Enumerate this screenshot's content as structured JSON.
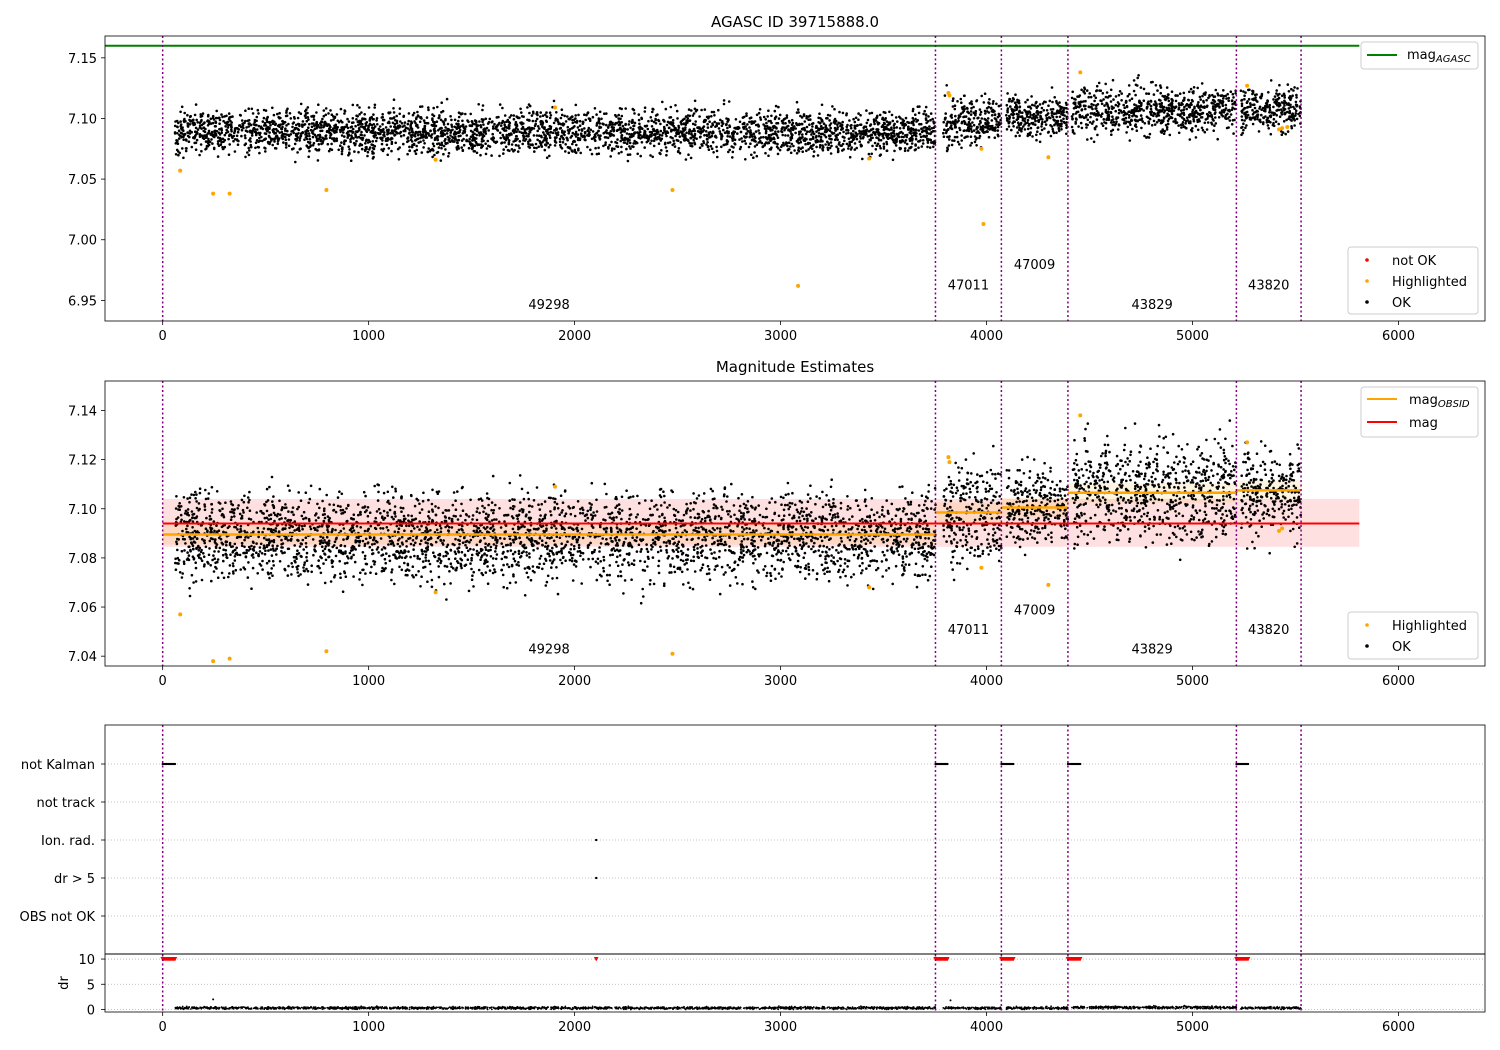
{
  "chart_data": [
    {
      "type": "scatter",
      "title": "AGASC ID 39715888.0",
      "xlim": [
        -280,
        6420
      ],
      "ylim": [
        6.933,
        7.168
      ],
      "xticks": [
        0,
        1000,
        2000,
        3000,
        4000,
        5000,
        6000
      ],
      "yticks": [
        6.95,
        7.0,
        7.05,
        7.1,
        7.15
      ],
      "ytick_labels": [
        "6.95",
        "7.00",
        "7.05",
        "7.10",
        "7.15"
      ],
      "xticklabels": [
        "0",
        "1000",
        "2000",
        "3000",
        "4000",
        "5000",
        "6000"
      ],
      "mag_agasc": 7.16,
      "obsid_boundaries": [
        0,
        3752,
        4072,
        4395,
        5213,
        5527
      ],
      "obsid_labels": [
        {
          "text": "49298",
          "x": 1876,
          "y": 6.943
        },
        {
          "text": "47011",
          "x": 3912,
          "y": 6.959
        },
        {
          "text": "47009",
          "x": 4233,
          "y": 6.976
        },
        {
          "text": "43829",
          "x": 4804,
          "y": 6.943
        },
        {
          "text": "43820",
          "x": 5370,
          "y": 6.959
        }
      ],
      "segments": [
        {
          "start": 60,
          "end": 3752,
          "mean": 7.089,
          "spread": 0.009
        },
        {
          "start": 3790,
          "end": 4072,
          "mean": 7.098,
          "spread": 0.01
        },
        {
          "start": 4095,
          "end": 4395,
          "mean": 7.101,
          "spread": 0.008
        },
        {
          "start": 4415,
          "end": 5213,
          "mean": 7.107,
          "spread": 0.01
        },
        {
          "start": 5235,
          "end": 5527,
          "mean": 7.107,
          "spread": 0.009
        }
      ],
      "highlighted_points": [
        [
          85,
          7.057
        ],
        [
          245,
          7.038
        ],
        [
          325,
          7.038
        ],
        [
          795,
          7.041
        ],
        [
          1325,
          7.066
        ],
        [
          1905,
          7.109
        ],
        [
          2475,
          7.041
        ],
        [
          3085,
          6.962
        ],
        [
          3430,
          7.067
        ],
        [
          3815,
          7.121
        ],
        [
          3820,
          7.119
        ],
        [
          3975,
          7.075
        ],
        [
          3985,
          7.013
        ],
        [
          4300,
          7.068
        ],
        [
          4455,
          7.138
        ],
        [
          5265,
          7.127
        ],
        [
          5420,
          7.091
        ],
        [
          5435,
          7.092
        ],
        [
          5460,
          7.093
        ]
      ],
      "legend_top": [
        {
          "label": "mag",
          "sub": "AGASC",
          "color": "#008000"
        }
      ],
      "legend_bottom": [
        {
          "label": "not OK",
          "color": "#ff0000"
        },
        {
          "label": "Highlighted",
          "color": "#ffa500"
        },
        {
          "label": "OK",
          "color": "#000000"
        }
      ]
    },
    {
      "type": "scatter",
      "title": "Magnitude Estimates",
      "xlim": [
        -280,
        6420
      ],
      "ylim": [
        7.036,
        7.152
      ],
      "xticks": [
        0,
        1000,
        2000,
        3000,
        4000,
        5000,
        6000
      ],
      "yticks": [
        7.04,
        7.06,
        7.08,
        7.1,
        7.12,
        7.14
      ],
      "ytick_labels": [
        "7.04",
        "7.06",
        "7.08",
        "7.10",
        "7.12",
        "7.14"
      ],
      "xticklabels": [
        "0",
        "1000",
        "2000",
        "3000",
        "4000",
        "5000",
        "6000"
      ],
      "mag": 7.094,
      "mag_band": [
        7.0845,
        7.104
      ],
      "mag_band_x": [
        0,
        5810
      ],
      "obsid_means": [
        {
          "start": 0,
          "end": 3752,
          "value": 7.0895
        },
        {
          "start": 3752,
          "end": 4072,
          "value": 7.0985
        },
        {
          "start": 4072,
          "end": 4395,
          "value": 7.1005
        },
        {
          "start": 4395,
          "end": 5213,
          "value": 7.1065
        },
        {
          "start": 5213,
          "end": 5527,
          "value": 7.1075
        }
      ],
      "obsid_boundaries": [
        0,
        3752,
        4072,
        4395,
        5213,
        5527
      ],
      "obsid_labels": [
        {
          "text": "49298",
          "x": 1876,
          "y": 7.041
        },
        {
          "text": "47011",
          "x": 3912,
          "y": 7.049
        },
        {
          "text": "47009",
          "x": 4233,
          "y": 7.057
        },
        {
          "text": "43829",
          "x": 4804,
          "y": 7.041
        },
        {
          "text": "43820",
          "x": 5370,
          "y": 7.049
        }
      ],
      "highlighted_points": [
        [
          85,
          7.057
        ],
        [
          245,
          7.038
        ],
        [
          325,
          7.039
        ],
        [
          795,
          7.042
        ],
        [
          1325,
          7.066
        ],
        [
          1905,
          7.109
        ],
        [
          2475,
          7.041
        ],
        [
          3430,
          7.068
        ],
        [
          3815,
          7.121
        ],
        [
          3820,
          7.119
        ],
        [
          3975,
          7.076
        ],
        [
          4300,
          7.069
        ],
        [
          4455,
          7.138
        ],
        [
          5265,
          7.127
        ],
        [
          5420,
          7.091
        ],
        [
          5435,
          7.092
        ]
      ],
      "legend_top": [
        {
          "label": "mag",
          "sub": "OBSID",
          "color": "#ffa500"
        },
        {
          "label": "mag",
          "sub": "",
          "color": "#ff0000"
        }
      ],
      "legend_bottom": [
        {
          "label": "Highlighted",
          "color": "#ffa500"
        },
        {
          "label": "OK",
          "color": "#000000"
        }
      ]
    },
    {
      "type": "scatter",
      "title": "",
      "xlim": [
        -280,
        6420
      ],
      "xticks": [
        0,
        1000,
        2000,
        3000,
        4000,
        5000,
        6000
      ],
      "xticklabels": [
        "0",
        "1000",
        "2000",
        "3000",
        "4000",
        "5000",
        "6000"
      ],
      "flag_categories": [
        "not Kalman",
        "not track",
        "Ion. rad.",
        "dr > 5",
        "OBS not OK"
      ],
      "flag_points": {
        "not Kalman": [
          [
            0,
            60
          ],
          [
            3752,
            3810
          ],
          [
            4072,
            4130
          ],
          [
            4395,
            4455
          ],
          [
            5213,
            5270
          ]
        ],
        "Ion. rad.": [
          [
            2105,
            2105
          ]
        ],
        "dr > 5": [
          [
            2105,
            2105
          ]
        ]
      },
      "dr_ylabel": "dr",
      "dr_yticks": [
        0,
        5,
        10
      ],
      "dr_ylim": [
        -0.5,
        11
      ],
      "dr_clipped": [
        [
          0,
          60
        ],
        [
          2105,
          2105
        ],
        [
          3752,
          3810
        ],
        [
          4072,
          4130
        ],
        [
          4395,
          4455
        ],
        [
          5213,
          5270
        ]
      ],
      "dr_segments": [
        {
          "start": 60,
          "end": 3752,
          "mean": 0.3
        },
        {
          "start": 3790,
          "end": 4072,
          "mean": 0.3
        },
        {
          "start": 4095,
          "end": 4395,
          "mean": 0.3
        },
        {
          "start": 4415,
          "end": 5213,
          "mean": 0.4
        },
        {
          "start": 5235,
          "end": 5527,
          "mean": 0.3
        }
      ],
      "obsid_boundaries": [
        0,
        3752,
        4072,
        4395,
        5213,
        5527
      ]
    }
  ],
  "colors": {
    "ok": "#000000",
    "highlighted": "#ffa500",
    "not_ok": "#ff0000",
    "agasc": "#008000",
    "obsid": "#ffa500",
    "mag": "#ff0000",
    "boundary": "#800080"
  }
}
